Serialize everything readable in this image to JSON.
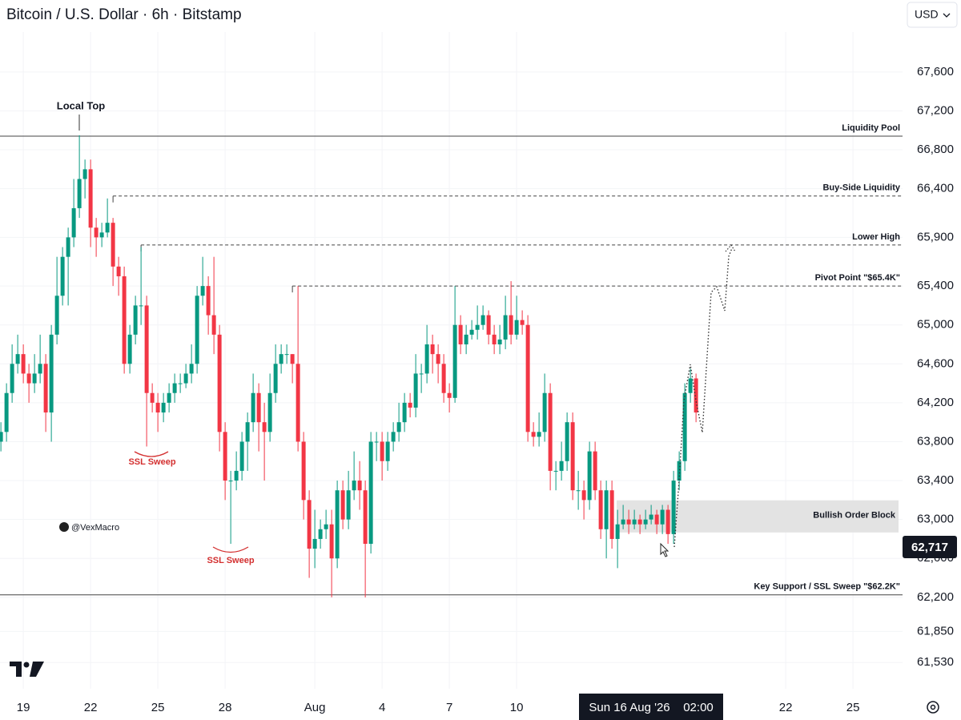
{
  "chart_data": {
    "type": "candlestick",
    "title": "Bitcoin / U.S. Dollar · 6h · Bitstamp",
    "currency": "USD",
    "up_color": "#089981",
    "down_color": "#f23645",
    "xlim": [
      17.96,
      58.21
    ],
    "ylim": [
      61260,
      68340
    ],
    "xticks": [
      19,
      22,
      25,
      28,
      {
        "value": 32,
        "label": "Aug"
      },
      {
        "value": 35,
        "label": "4"
      },
      {
        "value": 38,
        "label": "7"
      },
      {
        "value": 41,
        "label": "10"
      },
      {
        "value": 53,
        "label": "22"
      },
      {
        "value": 56,
        "label": "25"
      }
    ],
    "yticks": [
      {
        "value": 67600,
        "label": "67,600"
      },
      {
        "value": 67200,
        "label": "67,200"
      },
      {
        "value": 66800,
        "label": "66,800"
      },
      {
        "value": 66400,
        "label": "66,400"
      },
      {
        "value": 65900,
        "label": "65,900"
      },
      {
        "value": 65400,
        "label": "65,400"
      },
      {
        "value": 65000,
        "label": "65,000"
      },
      {
        "value": 64600,
        "label": "64,600"
      },
      {
        "value": 64200,
        "label": "64,200"
      },
      {
        "value": 63800,
        "label": "63,800"
      },
      {
        "value": 63400,
        "label": "63,400"
      },
      {
        "value": 63000,
        "label": "63,000"
      },
      {
        "value": 62600,
        "label": "62,600"
      },
      {
        "value": 62200,
        "label": "62,200"
      },
      {
        "value": 61850,
        "label": "61,850"
      },
      {
        "value": 61530,
        "label": "61,530"
      }
    ],
    "x": [
      18,
      18.25,
      18.5,
      18.75,
      19,
      19.25,
      19.5,
      19.75,
      20,
      20.25,
      20.5,
      20.75,
      21,
      21.25,
      21.5,
      21.75,
      22,
      22.25,
      22.5,
      22.75,
      23,
      23.25,
      23.5,
      23.75,
      24,
      24.25,
      24.5,
      24.75,
      25,
      25.25,
      25.5,
      25.75,
      26,
      26.25,
      26.5,
      26.75,
      27,
      27.25,
      27.5,
      27.75,
      28,
      28.25,
      28.5,
      28.75,
      29,
      29.25,
      29.5,
      29.75,
      30,
      30.25,
      30.5,
      30.75,
      31,
      31.25,
      31.5,
      31.75,
      32,
      32.25,
      32.5,
      32.75,
      33,
      33.25,
      33.5,
      33.75,
      34,
      34.25,
      34.5,
      34.75,
      35,
      35.25,
      35.5,
      35.75,
      36,
      36.25,
      36.5,
      36.75,
      37,
      37.25,
      37.5,
      37.75,
      38,
      38.25,
      38.5,
      38.75,
      39,
      39.25,
      39.5,
      39.75,
      40,
      40.25,
      40.5,
      40.75,
      41,
      41.25,
      41.5,
      41.75,
      42,
      42.25,
      42.5,
      42.75,
      43,
      43.25,
      43.5,
      43.75,
      44,
      44.25,
      44.5,
      44.75,
      45,
      45.25,
      45.5,
      45.75,
      46,
      46.25,
      46.5,
      46.75,
      47,
      47.25,
      47.5,
      47.75,
      48,
      48.25,
      48.5,
      48.75,
      49
    ],
    "open": [
      63800,
      63900,
      64300,
      64600,
      64700,
      64500,
      64400,
      64500,
      64600,
      64100,
      64900,
      65300,
      65700,
      65900,
      66200,
      66500,
      66600,
      66000,
      65900,
      65950,
      66050,
      65600,
      65500,
      64600,
      64900,
      65200,
      65200,
      64300,
      64200,
      64100,
      64200,
      64300,
      64400,
      64400,
      64500,
      64600,
      65300,
      65400,
      65100,
      64900,
      63900,
      63400,
      63400,
      63500,
      63800,
      64000,
      64300,
      64000,
      63900,
      64300,
      64600,
      64700,
      64700,
      64600,
      63800,
      63200,
      62700,
      62800,
      62900,
      62950,
      62600,
      63300,
      63000,
      63300,
      63400,
      63300,
      62750,
      63800,
      63800,
      63600,
      63800,
      63900,
      64000,
      64200,
      64150,
      64500,
      64500,
      64800,
      64700,
      64600,
      64300,
      64250,
      65000,
      64800,
      64900,
      64950,
      65000,
      65100,
      64900,
      64800,
      64850,
      65100,
      64900,
      65050,
      65000,
      63900,
      63850,
      63900,
      64300,
      63500,
      63500,
      63600,
      64000,
      63300,
      63300,
      63200,
      63700,
      63300,
      62900,
      63300,
      62800,
      62950,
      63000,
      62950,
      63000,
      62950,
      63000,
      63050,
      62950,
      63100,
      62850,
      63400,
      63600,
      64300,
      64450
    ],
    "high": [
      64000,
      64400,
      64800,
      64900,
      64800,
      64600,
      64700,
      64900,
      64700,
      65000,
      65700,
      65800,
      66000,
      66500,
      66950,
      66700,
      66700,
      66100,
      66050,
      66300,
      66100,
      65700,
      65600,
      65000,
      65300,
      65800,
      65300,
      64400,
      64300,
      64300,
      64400,
      64500,
      64500,
      64600,
      64800,
      65400,
      65700,
      65500,
      65700,
      65000,
      64000,
      63500,
      63700,
      63900,
      64100,
      64500,
      64400,
      64200,
      64500,
      64800,
      64800,
      64800,
      64700,
      65400,
      63900,
      63300,
      63100,
      63000,
      63100,
      63100,
      63400,
      63400,
      63500,
      63700,
      63600,
      63400,
      63900,
      63900,
      63900,
      63900,
      64000,
      64200,
      64300,
      64300,
      64700,
      64600,
      65000,
      64900,
      64800,
      64700,
      64400,
      65400,
      65100,
      65000,
      65050,
      65200,
      65200,
      65150,
      65000,
      65000,
      65300,
      65450,
      65300,
      65150,
      65100,
      64000,
      64100,
      64500,
      64400,
      63600,
      63800,
      64100,
      64100,
      63500,
      63400,
      63800,
      63800,
      63400,
      63400,
      63400,
      63100,
      63150,
      63100,
      63100,
      63050,
      63100,
      63150,
      63100,
      63150,
      63150,
      63500,
      63700,
      64400,
      64550,
      64500
    ],
    "low": [
      63700,
      63800,
      64200,
      64500,
      64400,
      64200,
      64300,
      64400,
      63900,
      63800,
      64800,
      65200,
      65200,
      65800,
      66100,
      66300,
      65800,
      65700,
      65800,
      65900,
      65400,
      65300,
      64500,
      64500,
      64800,
      65000,
      63750,
      64100,
      63900,
      64000,
      64100,
      64200,
      64300,
      64350,
      64400,
      64500,
      65200,
      64900,
      64700,
      63700,
      63200,
      62750,
      63300,
      63400,
      63500,
      63900,
      63700,
      63400,
      63800,
      64200,
      64500,
      64600,
      64400,
      63700,
      63000,
      62400,
      62500,
      62700,
      62800,
      62200,
      62500,
      62900,
      62900,
      63200,
      63100,
      62200,
      62650,
      63600,
      63400,
      63500,
      63700,
      63800,
      63900,
      64050,
      64050,
      64300,
      64400,
      64500,
      64400,
      64200,
      64100,
      64200,
      64700,
      64700,
      64850,
      64850,
      64950,
      64800,
      64700,
      64700,
      64750,
      64800,
      64850,
      64900,
      63800,
      63750,
      63750,
      63800,
      63300,
      63300,
      63400,
      63500,
      63200,
      63100,
      63000,
      63100,
      63200,
      62800,
      62600,
      62700,
      62500,
      62900,
      62850,
      62900,
      62850,
      62900,
      62950,
      62850,
      62850,
      62750,
      62750,
      63300,
      63500,
      64200,
      64000
    ],
    "close": [
      63900,
      64300,
      64600,
      64700,
      64500,
      64400,
      64500,
      64600,
      64100,
      64900,
      65300,
      65700,
      65900,
      66200,
      66500,
      66600,
      66000,
      65900,
      65950,
      66050,
      65600,
      65500,
      64600,
      64900,
      65200,
      65200,
      64300,
      64200,
      64100,
      64200,
      64300,
      64400,
      64400,
      64500,
      64600,
      65300,
      65400,
      65100,
      64900,
      63900,
      63400,
      63400,
      63500,
      63800,
      64000,
      64300,
      64000,
      63900,
      64300,
      64600,
      64700,
      64700,
      64600,
      63800,
      63200,
      62700,
      62800,
      62900,
      62950,
      62600,
      63300,
      63000,
      63300,
      63400,
      63300,
      62750,
      63800,
      63800,
      63600,
      63800,
      63900,
      64000,
      64200,
      64150,
      64500,
      64500,
      64800,
      64700,
      64600,
      64300,
      64250,
      65000,
      64800,
      64900,
      64950,
      65000,
      65100,
      64900,
      64800,
      64850,
      65100,
      64900,
      65050,
      65000,
      63900,
      63850,
      63900,
      64300,
      63500,
      63500,
      63600,
      64000,
      63300,
      63300,
      63200,
      63700,
      63300,
      62900,
      63300,
      62800,
      62950,
      63000,
      62950,
      63000,
      62950,
      63000,
      63050,
      62950,
      63100,
      62850,
      63400,
      63600,
      64300,
      64450,
      64100
    ],
    "levels": [
      {
        "label": "Liquidity Pool",
        "value": 66940,
        "style": "solid"
      },
      {
        "label": "Buy-Side Liquidity",
        "value": 66325,
        "style": "dashed",
        "from": 23
      },
      {
        "label": "Lower High",
        "value": 65822,
        "style": "dashed",
        "from": 24.25
      },
      {
        "label": "Pivot Point \"$65.4K\"",
        "value": 65400,
        "style": "dashed",
        "from": 31
      },
      {
        "label": "Key Support / SSL Sweep \"$62.2K\"",
        "value": 62225,
        "style": "solid"
      }
    ],
    "zone": {
      "label": "Bullish Order Block",
      "low": 62867,
      "high": 63197,
      "from": 45.46
    },
    "last_price": {
      "value": 62717,
      "label": "62,717"
    },
    "crosshair": {
      "date": "Sun 16 Aug '26",
      "time": "02:00"
    },
    "annotations": {
      "local_top": "Local Top",
      "ssl_sweep_1": "SSL Sweep",
      "ssl_sweep_2": "SSL Sweep",
      "author": "@VexMacro"
    }
  }
}
